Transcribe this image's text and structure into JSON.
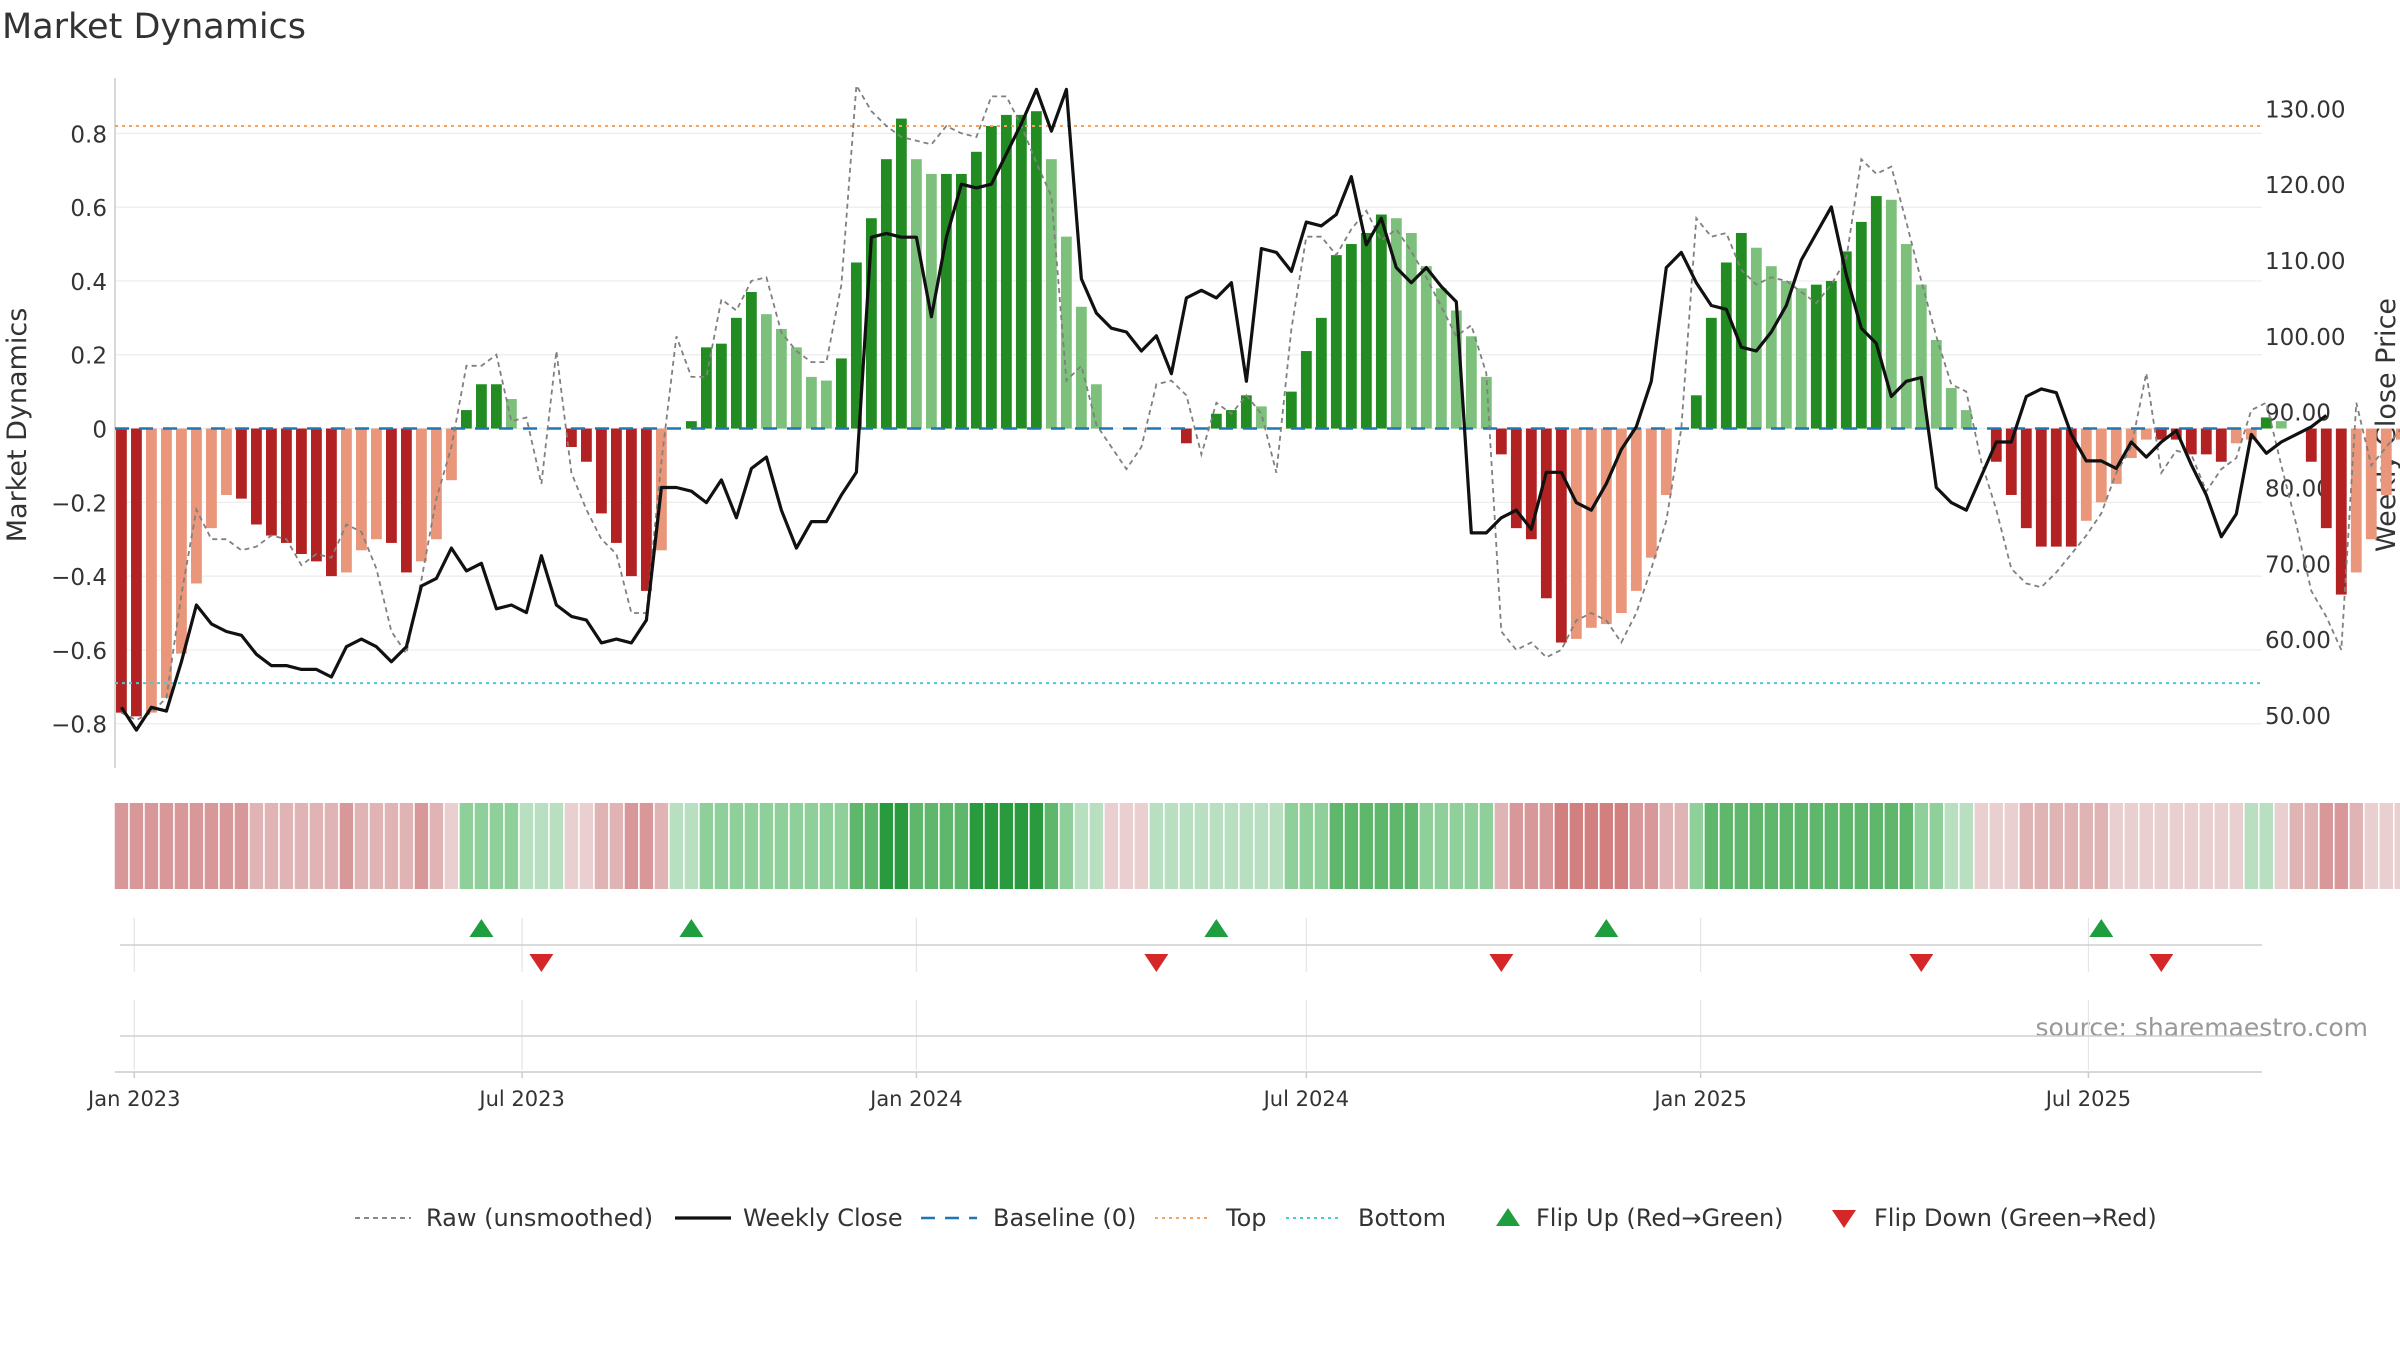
{
  "chart_data": {
    "type": "bar",
    "title": "Market Dynamics",
    "ylabel": "Market Dynamics",
    "y2label": "Weekly Close Price",
    "ylim": [
      -0.92,
      0.95
    ],
    "y2lim": [
      43.0,
      134.0
    ],
    "yticks": [
      -0.8,
      -0.6,
      -0.4,
      -0.2,
      0,
      0.2,
      0.4,
      0.6,
      0.8
    ],
    "ytick_labels": [
      "−0.8",
      "−0.6",
      "−0.4",
      "−0.2",
      "0",
      "0.2",
      "0.4",
      "0.6",
      "0.8"
    ],
    "y2ticks": [
      50,
      60,
      70,
      80,
      90,
      100,
      110,
      120,
      130
    ],
    "y2tick_labels": [
      "50.00",
      "60.00",
      "70.00",
      "80.00",
      "90.00",
      "100.00",
      "110.00",
      "120.00",
      "130.00"
    ],
    "xlim": [
      "2022-12-23",
      "2025-09-20"
    ],
    "xticks": [
      "2023-01-01",
      "2023-07-01",
      "2024-01-01",
      "2024-07-01",
      "2025-01-01",
      "2025-07-01"
    ],
    "xtick_labels": [
      "Jan 2023",
      "Jul 2023",
      "Jan 2024",
      "Jul 2024",
      "Jan 2025",
      "Jul 2025"
    ],
    "grid": true,
    "legend_position": "bottom",
    "start_week": "2022-12-26",
    "top_line": 0.82,
    "bottom_line": -0.69,
    "baseline": 0,
    "dynamics": [
      -0.77,
      -0.78,
      -0.77,
      -0.73,
      -0.61,
      -0.42,
      -0.27,
      -0.18,
      -0.19,
      -0.26,
      -0.29,
      -0.31,
      -0.34,
      -0.36,
      -0.4,
      -0.39,
      -0.33,
      -0.3,
      -0.31,
      -0.39,
      -0.36,
      -0.3,
      -0.14,
      0.05,
      0.12,
      0.12,
      0.08,
      0.0,
      0.0,
      0.0,
      -0.05,
      -0.09,
      -0.23,
      -0.31,
      -0.4,
      -0.44,
      -0.33,
      0.0,
      0.02,
      0.22,
      0.23,
      0.3,
      0.37,
      0.31,
      0.27,
      0.22,
      0.14,
      0.13,
      0.19,
      0.45,
      0.57,
      0.73,
      0.84,
      0.73,
      0.69,
      0.69,
      0.69,
      0.75,
      0.82,
      0.85,
      0.85,
      0.86,
      0.73,
      0.52,
      0.33,
      0.12,
      0.0,
      0.0,
      0.0,
      0.0,
      0.0,
      -0.04,
      0.0,
      0.04,
      0.05,
      0.09,
      0.06,
      0.0,
      0.1,
      0.21,
      0.3,
      0.47,
      0.5,
      0.53,
      0.58,
      0.57,
      0.53,
      0.44,
      0.38,
      0.32,
      0.25,
      0.14,
      -0.07,
      -0.27,
      -0.3,
      -0.46,
      -0.58,
      -0.57,
      -0.54,
      -0.53,
      -0.5,
      -0.44,
      -0.35,
      -0.18,
      0.0,
      0.09,
      0.3,
      0.45,
      0.53,
      0.49,
      0.44,
      0.4,
      0.38,
      0.39,
      0.4,
      0.48,
      0.56,
      0.63,
      0.62,
      0.5,
      0.39,
      0.24,
      0.11,
      0.05,
      0.0,
      -0.09,
      -0.18,
      -0.27,
      -0.32,
      -0.32,
      -0.32,
      -0.25,
      -0.2,
      -0.15,
      -0.08,
      -0.03,
      -0.03,
      -0.03,
      -0.07,
      -0.07,
      -0.09,
      -0.04,
      -0.03,
      0.03,
      0.02,
      0.0,
      -0.09,
      -0.27,
      -0.45,
      -0.39,
      -0.3,
      -0.18,
      -0.03,
      -0.04
    ],
    "raw": [
      -0.77,
      -0.79,
      -0.77,
      -0.73,
      -0.45,
      -0.22,
      -0.3,
      -0.3,
      -0.33,
      -0.32,
      -0.29,
      -0.3,
      -0.37,
      -0.34,
      -0.35,
      -0.26,
      -0.28,
      -0.38,
      -0.55,
      -0.61,
      -0.41,
      -0.19,
      -0.05,
      0.17,
      0.17,
      0.2,
      0.02,
      0.03,
      -0.15,
      0.21,
      -0.12,
      -0.22,
      -0.3,
      -0.34,
      -0.5,
      -0.5,
      -0.09,
      0.25,
      0.14,
      0.14,
      0.35,
      0.32,
      0.4,
      0.41,
      0.26,
      0.21,
      0.18,
      0.18,
      0.39,
      0.93,
      0.86,
      0.82,
      0.79,
      0.78,
      0.77,
      0.82,
      0.8,
      0.79,
      0.9,
      0.9,
      0.82,
      0.72,
      0.63,
      0.13,
      0.17,
      0.01,
      -0.05,
      -0.11,
      -0.05,
      0.12,
      0.13,
      0.09,
      -0.07,
      0.07,
      0.04,
      0.09,
      0.04,
      -0.12,
      0.27,
      0.52,
      0.52,
      0.47,
      0.54,
      0.59,
      0.51,
      0.54,
      0.48,
      0.41,
      0.33,
      0.25,
      0.28,
      0.15,
      -0.55,
      -0.6,
      -0.58,
      -0.62,
      -0.6,
      -0.52,
      -0.5,
      -0.52,
      -0.58,
      -0.5,
      -0.38,
      -0.25,
      0.0,
      0.57,
      0.52,
      0.53,
      0.43,
      0.39,
      0.41,
      0.4,
      0.37,
      0.34,
      0.39,
      0.46,
      0.73,
      0.69,
      0.71,
      0.56,
      0.4,
      0.25,
      0.12,
      0.1,
      -0.09,
      -0.22,
      -0.38,
      -0.42,
      -0.43,
      -0.39,
      -0.34,
      -0.29,
      -0.23,
      -0.12,
      -0.05,
      0.15,
      -0.12,
      -0.06,
      -0.07,
      -0.17,
      -0.11,
      -0.08,
      0.05,
      0.07,
      -0.1,
      -0.26,
      -0.44,
      -0.51,
      -0.6,
      0.07,
      -0.1,
      -0.05,
      0.0,
      0.05
    ],
    "weekly_close": [
      51.0,
      48.0,
      51.0,
      50.5,
      57.0,
      64.5,
      62.0,
      61.0,
      60.5,
      58.0,
      56.5,
      56.5,
      56.0,
      56.0,
      55.0,
      59.0,
      60.0,
      59.0,
      57.0,
      59.0,
      67.0,
      68.0,
      72.0,
      69.0,
      70.0,
      64.0,
      64.5,
      63.5,
      71.0,
      64.5,
      63.0,
      62.5,
      59.5,
      60.0,
      59.5,
      62.5,
      80.0,
      80.0,
      79.5,
      78.0,
      81.0,
      76.0,
      82.5,
      84.0,
      77.0,
      72.0,
      75.5,
      75.5,
      79.0,
      82.0,
      113.0,
      113.5,
      113.0,
      113.0,
      102.5,
      113.0,
      120.0,
      119.5,
      120.0,
      124.0,
      128.0,
      132.5,
      127.0,
      132.5,
      107.5,
      103.0,
      101.0,
      100.5,
      98.0,
      100.0,
      95.0,
      105.0,
      106.0,
      105.0,
      107.0,
      94.0,
      111.5,
      111.0,
      108.5,
      115.0,
      114.5,
      116.0,
      121.0,
      112.0,
      115.5,
      109.0,
      107.0,
      109.0,
      106.5,
      104.5,
      74.0,
      74.0,
      76.0,
      77.0,
      74.5,
      82.0,
      82.0,
      78.0,
      77.0,
      80.5,
      85.0,
      88.0,
      94.0,
      109.0,
      111.0,
      107.0,
      104.0,
      103.5,
      98.5,
      98.0,
      100.5,
      104.0,
      110.0,
      113.5,
      117.0,
      108.0,
      101.0,
      99.0,
      92.0,
      94.0,
      94.5,
      80.0,
      78.0,
      77.0,
      81.5,
      86.0,
      86.0,
      92.0,
      93.0,
      92.5,
      87.0,
      83.5,
      83.5,
      82.5,
      86.0,
      84.0,
      86.0,
      87.5,
      83.0,
      79.0,
      73.5,
      76.5,
      87.0,
      84.5,
      86.0,
      87.0,
      88.0,
      89.5
    ],
    "regime_colors": [
      "#d17f7f",
      "#d8989a",
      "#e0b3b5",
      "#e9cfd0",
      "#b8dfbf",
      "#8fcf99",
      "#5fb76c",
      "#2a9a3e"
    ],
    "regime_bands": [
      [
        1,
        1,
        1,
        1,
        1,
        1,
        1,
        1,
        1,
        2,
        2,
        2,
        2,
        2,
        2,
        1,
        2,
        2,
        2,
        2,
        1,
        2,
        3,
        5,
        5,
        5,
        5,
        4,
        4,
        4,
        3,
        3,
        2,
        2,
        1,
        1,
        2,
        4,
        4,
        5,
        5,
        5,
        5,
        5,
        5,
        5,
        5,
        5,
        5,
        6,
        6,
        7,
        7,
        6,
        6,
        6,
        6,
        7,
        7,
        7,
        7,
        7,
        6,
        5,
        4,
        4,
        3,
        3,
        3,
        4,
        4,
        4,
        4,
        4,
        4,
        4,
        4,
        4,
        5,
        5,
        5,
        6,
        6,
        6,
        6,
        6,
        6,
        5,
        5,
        5,
        5,
        5,
        2,
        1,
        1,
        1,
        0,
        0,
        0,
        0,
        0,
        1,
        1,
        2,
        2,
        5,
        6,
        6,
        6,
        6,
        6,
        6,
        6,
        6,
        6,
        6,
        6,
        6,
        6,
        6,
        5,
        5,
        4,
        4,
        3,
        3,
        3,
        2,
        2,
        2,
        2,
        2,
        2,
        3,
        3,
        3,
        3,
        3,
        3,
        3,
        3,
        3,
        4,
        4,
        3,
        2,
        2,
        1,
        1,
        2,
        3,
        3,
        3,
        3
      ]
    ],
    "flips": [
      {
        "date": "2023-06-12",
        "type": "up"
      },
      {
        "date": "2023-07-10",
        "type": "down"
      },
      {
        "date": "2023-09-18",
        "type": "up"
      },
      {
        "date": "2024-04-22",
        "type": "down"
      },
      {
        "date": "2024-05-20",
        "type": "up"
      },
      {
        "date": "2024-09-30",
        "type": "down"
      },
      {
        "date": "2024-11-18",
        "type": "up"
      },
      {
        "date": "2025-04-14",
        "type": "down"
      },
      {
        "date": "2025-07-07",
        "type": "up"
      },
      {
        "date": "2025-08-04",
        "type": "down"
      }
    ],
    "legend": [
      {
        "label": "Raw (unsmoothed)",
        "kind": "dashed-line",
        "color": "#888888"
      },
      {
        "label": "Weekly Close",
        "kind": "line",
        "color": "#111111"
      },
      {
        "label": "Baseline (0)",
        "kind": "dash-line",
        "color": "#1f77b4"
      },
      {
        "label": "Top",
        "kind": "dot-line",
        "color": "#f4a460"
      },
      {
        "label": "Bottom",
        "kind": "dot-line",
        "color": "#48c9d3"
      },
      {
        "label": "Flip Up (Red→Green)",
        "kind": "up-triangle",
        "color": "#1e9e3e"
      },
      {
        "label": "Flip Down (Green→Red)",
        "kind": "down-triangle",
        "color": "#d62728"
      }
    ],
    "source": "source: sharemaestro.com"
  }
}
